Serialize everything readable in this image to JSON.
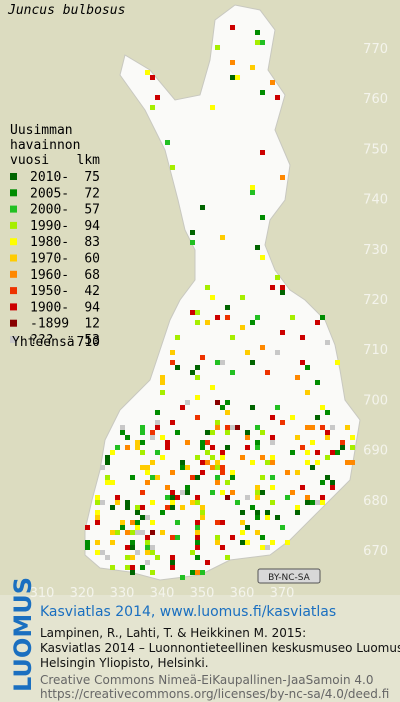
{
  "title": "Juncus bulbosus",
  "legend": {
    "heading": [
      "Uusimman",
      "havainnon",
      "vuosi"
    ],
    "count_heading": "lkm",
    "rows": [
      {
        "label": "2010-",
        "count": 75,
        "color": "#006400"
      },
      {
        "label": "2005-",
        "count": 72,
        "color": "#008c00"
      },
      {
        "label": "2000-",
        "count": 57,
        "color": "#22c022"
      },
      {
        "label": "1990-",
        "count": 94,
        "color": "#a6ee00"
      },
      {
        "label": "1980-",
        "count": 83,
        "color": "#ffff00"
      },
      {
        "label": "1970-",
        "count": 60,
        "color": "#ffcc00"
      },
      {
        "label": "1960-",
        "count": 68,
        "color": "#ff8800"
      },
      {
        "label": "1950-",
        "count": 42,
        "color": "#ee3300"
      },
      {
        "label": "1900-",
        "count": 94,
        "color": "#cc0000"
      },
      {
        "label": "-1899",
        "count": 12,
        "color": "#880000"
      },
      {
        "label": "???",
        "count": 53,
        "color": "#c8c8c8"
      }
    ],
    "total_label": "Yhteensä",
    "total": 710
  },
  "map": {
    "xticks": [
      310,
      320,
      330,
      340,
      350,
      360,
      370
    ],
    "yticks": [
      770,
      760,
      750,
      740,
      730,
      720,
      710,
      700,
      690,
      680,
      670
    ],
    "license_badge": "BY-NC-SA"
  },
  "footer": {
    "logo": "LUOMUS",
    "headline": "Kasviatlas 2014, www.luomus.fi/kasviatlas",
    "citation": [
      "Lampinen, R., Lahti, T. & Heikkinen M. 2015:",
      "Kasviatlas 2014 – Luonnontieteellinen keskusmuseo Luomus,",
      "Helsingin Yliopisto, Helsinki."
    ],
    "license": [
      "Creative Commons Nimeä-EiKaupallinen-JaaSamoin 4.0",
      "https://creativecommons.org/licenses/by-nc-sa/4.0/deed.fi"
    ]
  }
}
